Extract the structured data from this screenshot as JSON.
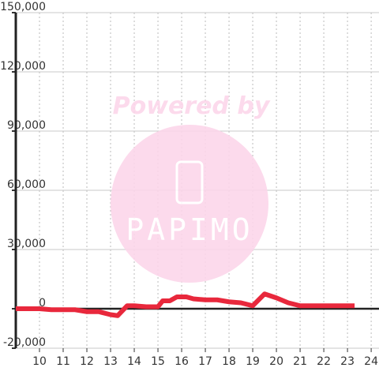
{
  "chart_data": {
    "type": "line",
    "watermark": [
      "Powered by",
      "PAPIMO"
    ],
    "x": [
      9,
      10,
      10.5,
      11,
      11.5,
      12,
      12.5,
      13,
      13.3,
      13.7,
      14,
      14.5,
      15,
      15.2,
      15.5,
      15.8,
      16.2,
      16.5,
      17,
      17.5,
      18,
      18.5,
      19,
      19.5,
      20,
      20.5,
      21,
      21.5,
      22,
      23.3
    ],
    "series": [
      {
        "color": "#e8283c",
        "values": [
          0,
          0,
          -500,
          -500,
          -500,
          -1500,
          -1500,
          -3000,
          -3500,
          1500,
          1500,
          1000,
          1000,
          4000,
          4000,
          6000,
          6000,
          5000,
          4500,
          4500,
          3500,
          3000,
          1500,
          7500,
          5500,
          3000,
          1500,
          1500,
          1500,
          1500
        ]
      }
    ],
    "xlim": [
      9,
      24.33
    ],
    "xticks": [
      10,
      11,
      12,
      13,
      14,
      15,
      16,
      17,
      18,
      19,
      20,
      21,
      22,
      23,
      24
    ],
    "ylim": [
      -20000,
      150000
    ],
    "yticks": [
      {
        "value": -20000,
        "label": "-20,000"
      },
      0,
      {
        "value": 30000,
        "label": "30,000"
      },
      {
        "value": 60000,
        "label": "60,000"
      },
      {
        "value": 90000,
        "label": "90,000"
      },
      {
        "value": 120000,
        "label": "120,000"
      },
      {
        "value": 150000,
        "label": "150,000"
      }
    ],
    "grid": true
  }
}
